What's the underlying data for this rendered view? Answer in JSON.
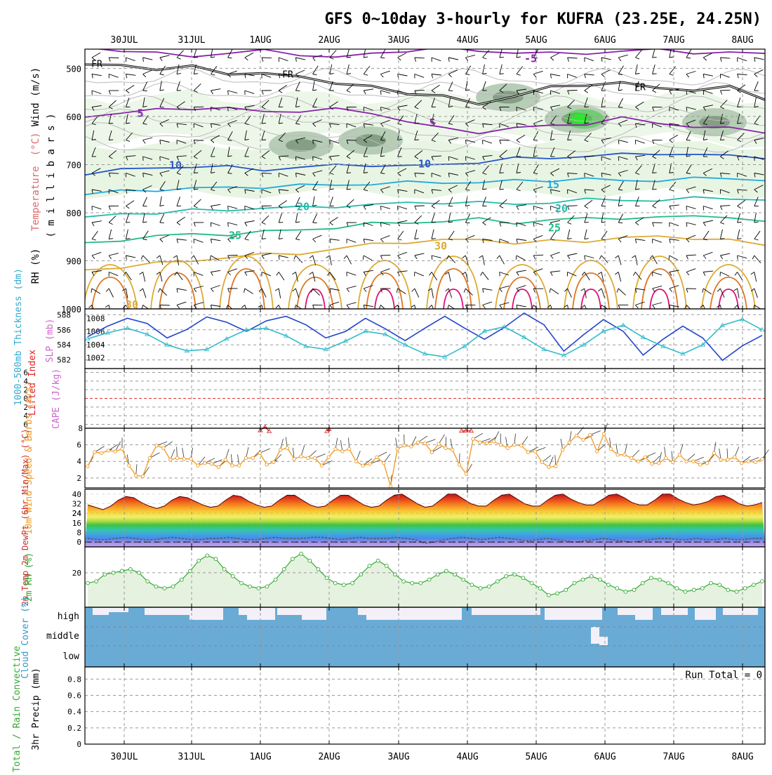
{
  "title": "GFS 0~10day 3-hourly for KUFRA (23.25E, 24.25N)",
  "dates": [
    "30JUL",
    "31JUL",
    "1AUG",
    "2AUG",
    "3AUG",
    "4AUG",
    "5AUG",
    "6AUG",
    "7AUG",
    "8AUG"
  ],
  "colors": {
    "rh_fill": "#e8f5e3",
    "rh_mid": "#b0c8b0",
    "rh_high": "#7f9a80",
    "rh_peak": "#44cc44",
    "freezing": "#000000",
    "isotherm_minus5": "#8822aa",
    "isotherm_10": "#2255cc",
    "isotherm_15": "#22aadd",
    "isotherm_20": "#22bbaa",
    "isotherm_25": "#22bb88",
    "isotherm_30": "#ddaa33",
    "isotherm_35": "#dd7722",
    "isotherm_40": "#dd1177",
    "slp": "#2244cc",
    "thickness": "#33bbcc",
    "lifted": "#dd2222",
    "cape": "#cc66cc",
    "wind10m": "#ee9922",
    "rh2m": "#33aa33",
    "rh2m_fill": "#e6f2e0",
    "cloud": "#6aabd6",
    "cloud_clear": "#f4f0f8",
    "precip": "#33aa33"
  },
  "chart_data": [
    {
      "type": "contour",
      "panel": "profile",
      "ylabel_parts": [
        "RH (%)",
        "Temperature",
        "(°C)",
        "Wind (m/s)"
      ],
      "yunit": "( m i l l i b a r s )",
      "yticks": [
        500,
        600,
        700,
        800,
        900,
        1000
      ],
      "ylim": [
        460,
        1000
      ],
      "freezing_label": "FR",
      "isotherm_labels": [
        "-5",
        "5",
        "10",
        "15",
        "20",
        "25",
        "30"
      ],
      "isotherm_levels": [
        {
          "temp": -5,
          "p": [
            456,
            462,
            470,
            474,
            468,
            464,
            470,
            478,
            470,
            462,
            458,
            464,
            466,
            470,
            468,
            464,
            462,
            466,
            468,
            470
          ]
        },
        {
          "temp": 5,
          "p": [
            598,
            594,
            586,
            582,
            584,
            590,
            588,
            586,
            592,
            610,
            626,
            632,
            624,
            620,
            614,
            604,
            614,
            620,
            626,
            632
          ]
        },
        {
          "temp": 10,
          "p": [
            718,
            712,
            706,
            704,
            706,
            710,
            706,
            702,
            700,
            704,
            700,
            694,
            688,
            686,
            682,
            680,
            676,
            680,
            682,
            684
          ]
        },
        {
          "temp": 15,
          "p": [
            762,
            756,
            752,
            750,
            748,
            746,
            744,
            742,
            740,
            738,
            736,
            738,
            734,
            732,
            730,
            734,
            732,
            730,
            728,
            732
          ]
        },
        {
          "temp": 20,
          "p": [
            812,
            802,
            800,
            796,
            794,
            790,
            790,
            786,
            784,
            780,
            778,
            780,
            782,
            778,
            774,
            772,
            776,
            770,
            768,
            776
          ]
        },
        {
          "temp": 25,
          "p": [
            866,
            856,
            848,
            846,
            844,
            840,
            836,
            830,
            824,
            820,
            818,
            814,
            820,
            816,
            812,
            810,
            812,
            806,
            808,
            822
          ]
        },
        {
          "temp": 30,
          "p": [
            920,
            912,
            906,
            900,
            892,
            888,
            884,
            876,
            866,
            860,
            858,
            856,
            862,
            860,
            860,
            850,
            852,
            852,
            856,
            870
          ]
        }
      ],
      "freezing_level_p": [
        492,
        496,
        498,
        500,
        508,
        512,
        518,
        528,
        542,
        548,
        560,
        574,
        556,
        542,
        530,
        534,
        538,
        546,
        540,
        560
      ],
      "rh_high_cells": [
        {
          "date": "2AUG",
          "p": 660
        },
        {
          "date": "3AUG",
          "p": 650
        },
        {
          "date": "5AUG",
          "p": 560
        },
        {
          "date": "6AUG",
          "p": 605
        },
        {
          "date": "8AUG",
          "p": 612
        }
      ]
    },
    {
      "type": "line",
      "panel": "slp_thickness",
      "ylabel_left": "1000-500mb Thickness (dm)",
      "ylabel_right": "SLP (mb)",
      "left_ticks": [
        582,
        584,
        586,
        588
      ],
      "right_ticks": [
        1002,
        1004,
        1006,
        1008
      ],
      "series": [
        {
          "name": "SLP",
          "axis": "right",
          "values": [
            1005.2,
            1006.8,
            1008.0,
            1007.2,
            1005.0,
            1006.3,
            1008.2,
            1007.4,
            1006.0,
            1007.6,
            1008.3,
            1007.0,
            1005.0,
            1006.0,
            1008.0,
            1006.4,
            1004.6,
            1006.5,
            1008.3,
            1006.5,
            1004.8,
            1006.6,
            1008.8,
            1007.0,
            1003.0,
            1005.5,
            1007.8,
            1006.0,
            1002.4,
            1004.8,
            1006.8,
            1005.0,
            1001.6,
            1003.8,
            1005.4
          ]
        },
        {
          "name": "Thickness",
          "axis": "left",
          "values": [
            584.8,
            585.6,
            586.2,
            585.4,
            584.0,
            583.2,
            583.4,
            584.8,
            586.0,
            586.2,
            585.2,
            583.8,
            583.4,
            584.5,
            585.8,
            585.4,
            584.0,
            582.8,
            582.4,
            583.8,
            585.8,
            586.4,
            585.0,
            583.4,
            582.6,
            584.0,
            585.8,
            586.6,
            585.0,
            583.8,
            582.8,
            584.0,
            586.6,
            587.4,
            586.0
          ]
        }
      ]
    },
    {
      "type": "line",
      "panel": "lifted_cape",
      "ylabel_left": "Lifted Index",
      "ylabel_right": "CAPE (J/kg)",
      "yticks": [
        -6,
        -4,
        -2,
        0,
        2,
        4,
        6
      ],
      "cape_ticks": [
        8
      ],
      "series": [
        {
          "name": "Lifted Index",
          "segments": [
            {
              "x": [
                2.55,
                2.62,
                2.68
              ],
              "y": [
                7.4,
                6.6,
                7.6
              ]
            },
            {
              "x": [
                3.52,
                3.55
              ],
              "y": [
                7.6,
                7.1
              ]
            },
            {
              "x": [
                5.48,
                5.54,
                5.62
              ],
              "y": [
                7.5,
                7.5,
                7.5
              ]
            }
          ]
        }
      ]
    },
    {
      "type": "line",
      "panel": "wind10m",
      "ylabel": "10m Wind Speed & Barbs (m/s)",
      "yticks": [
        2,
        4,
        6
      ],
      "ylim": [
        0.8,
        8
      ],
      "series": [
        {
          "name": "10m Wind Speed",
          "values": [
            3.4,
            5.1,
            5.0,
            5.3,
            5.2,
            5.5,
            3.5,
            2.3,
            2.2,
            4.4,
            5.9,
            5.6,
            4.2,
            4.4,
            4.3,
            4.3,
            3.5,
            3.8,
            3.7,
            3.3,
            4.2,
            3.5,
            3.5,
            4.4,
            4.4,
            5.0,
            3.6,
            3.9,
            5.4,
            5.6,
            4.3,
            4.6,
            4.4,
            4.4,
            3.5,
            4.5,
            5.5,
            5.2,
            5.5,
            4.0,
            3.5,
            3.7,
            4.5,
            3.8,
            1.0,
            5.5,
            5.9,
            5.8,
            6.3,
            6.2,
            5.1,
            6.1,
            5.6,
            5.4,
            3.6,
            2.5,
            6.7,
            6.3,
            6.2,
            6.4,
            6.0,
            5.6,
            6.0,
            5.9,
            5.1,
            5.2,
            3.9,
            3.3,
            3.4,
            5.4,
            6.3,
            7.1,
            6.6,
            7.2,
            5.2,
            7.3,
            5.5,
            4.8,
            4.8,
            4.4,
            4.0,
            4.5,
            3.7,
            3.8,
            4.4,
            3.9,
            4.8,
            4.0,
            4.0,
            3.6,
            3.8,
            5.0,
            4.2,
            4.2,
            4.5,
            3.8,
            4.0,
            3.9,
            4.3
          ]
        }
      ]
    },
    {
      "type": "area",
      "panel": "temp2m",
      "ylabel": "2m Temp 2m DewPt (6hr Min/Max) (°C)",
      "yticks": [
        0,
        8,
        16,
        24,
        32,
        40
      ],
      "ylim": [
        -4,
        44
      ],
      "series": [
        {
          "name": "2m Temp",
          "values": [
            31,
            29,
            27,
            30,
            35,
            38,
            37,
            33,
            30,
            28,
            30,
            35,
            38,
            37,
            34,
            31,
            29,
            30,
            35,
            39,
            38,
            34,
            31,
            29,
            30,
            35,
            39,
            39,
            35,
            31,
            29,
            30,
            35,
            39,
            39,
            35,
            31,
            29,
            30,
            35,
            39,
            40,
            36,
            32,
            29,
            30,
            35,
            40,
            40,
            36,
            32,
            30,
            30,
            35,
            39,
            40,
            36,
            32,
            30,
            30,
            35,
            39,
            40,
            36,
            33,
            31,
            31,
            35,
            39,
            40,
            37,
            33,
            31,
            31,
            35,
            40,
            40,
            36,
            33,
            31,
            32,
            34,
            38,
            39,
            36,
            32,
            30,
            31,
            33
          ]
        },
        {
          "name": "2m DewPt",
          "values": [
            3,
            2,
            2,
            3,
            4,
            3,
            2,
            2,
            3,
            4,
            3,
            2,
            2,
            3,
            3,
            4,
            3,
            2,
            2,
            3,
            4,
            3,
            3,
            3,
            4,
            4,
            3,
            2,
            3,
            4,
            3,
            3,
            3,
            4,
            3,
            2,
            -1,
            0,
            2,
            3,
            4,
            3,
            2,
            3,
            4,
            3,
            2,
            1,
            2,
            3,
            2,
            1,
            0,
            1,
            2,
            3,
            2,
            1,
            0,
            1,
            2,
            3,
            3,
            2,
            2,
            3,
            2,
            2,
            3,
            2,
            2,
            3,
            3
          ]
        }
      ]
    },
    {
      "type": "line",
      "panel": "rh2m",
      "ylabel": "2m RH (%)",
      "yticks": [
        20
      ],
      "ylim": [
        0,
        35
      ],
      "series": [
        {
          "name": "2m RH",
          "values": [
            14,
            15,
            19,
            20,
            21,
            22,
            20,
            15,
            12,
            11,
            12,
            16,
            21,
            27,
            30,
            28,
            22,
            18,
            14,
            12,
            11,
            12,
            16,
            22,
            28,
            31,
            27,
            22,
            17,
            14,
            13,
            14,
            19,
            24,
            27,
            24,
            19,
            15,
            14,
            14,
            16,
            19,
            21,
            19,
            16,
            13,
            11,
            12,
            15,
            18,
            19,
            17,
            14,
            11,
            7,
            8,
            10,
            14,
            16,
            18,
            16,
            13,
            11,
            9,
            10,
            14,
            17,
            16,
            14,
            11,
            9,
            10,
            11,
            14,
            13,
            10,
            9,
            11,
            13,
            15
          ]
        }
      ]
    },
    {
      "type": "bar",
      "panel": "cloud",
      "ylabel": "Cloud Cover (%)",
      "levels": [
        "high",
        "middle",
        "low"
      ]
    },
    {
      "type": "bar",
      "panel": "precip",
      "ylabel_left": "Total / Rain Convective",
      "ylabel": "3hr Precip (mm)",
      "yticks": [
        0,
        0.2,
        0.4,
        0.6,
        0.8
      ],
      "ylim": [
        0,
        0.95
      ],
      "run_total_label": "Run Total = 0",
      "values": []
    }
  ]
}
